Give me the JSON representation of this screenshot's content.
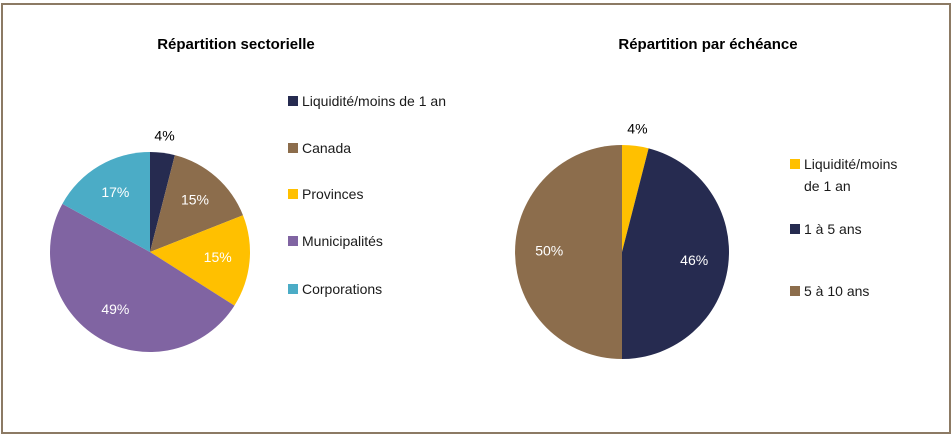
{
  "chart_data": [
    {
      "type": "pie",
      "title": "Répartition sectorielle",
      "categories": [
        "Liquidité/moins de 1 an",
        "Canada",
        "Provinces",
        "Municipalités",
        "Corporations"
      ],
      "values": [
        4,
        15,
        15,
        49,
        17
      ],
      "value_labels": [
        "4%",
        "15%",
        "15%",
        "49%",
        "17%"
      ],
      "colors": [
        "#262b50",
        "#8c6d4c",
        "#ffc000",
        "#8064a2",
        "#4bacc6"
      ],
      "legend": "right"
    },
    {
      "type": "pie",
      "title": "Répartition par échéance",
      "categories": [
        "Liquidité/moins de 1 an",
        "1 à 5 ans",
        "5 à 10 ans"
      ],
      "values": [
        4,
        46,
        50
      ],
      "value_labels": [
        "4%",
        "46%",
        "50%"
      ],
      "colors": [
        "#ffc000",
        "#262b50",
        "#8c6d4c"
      ],
      "legend": "right"
    }
  ]
}
